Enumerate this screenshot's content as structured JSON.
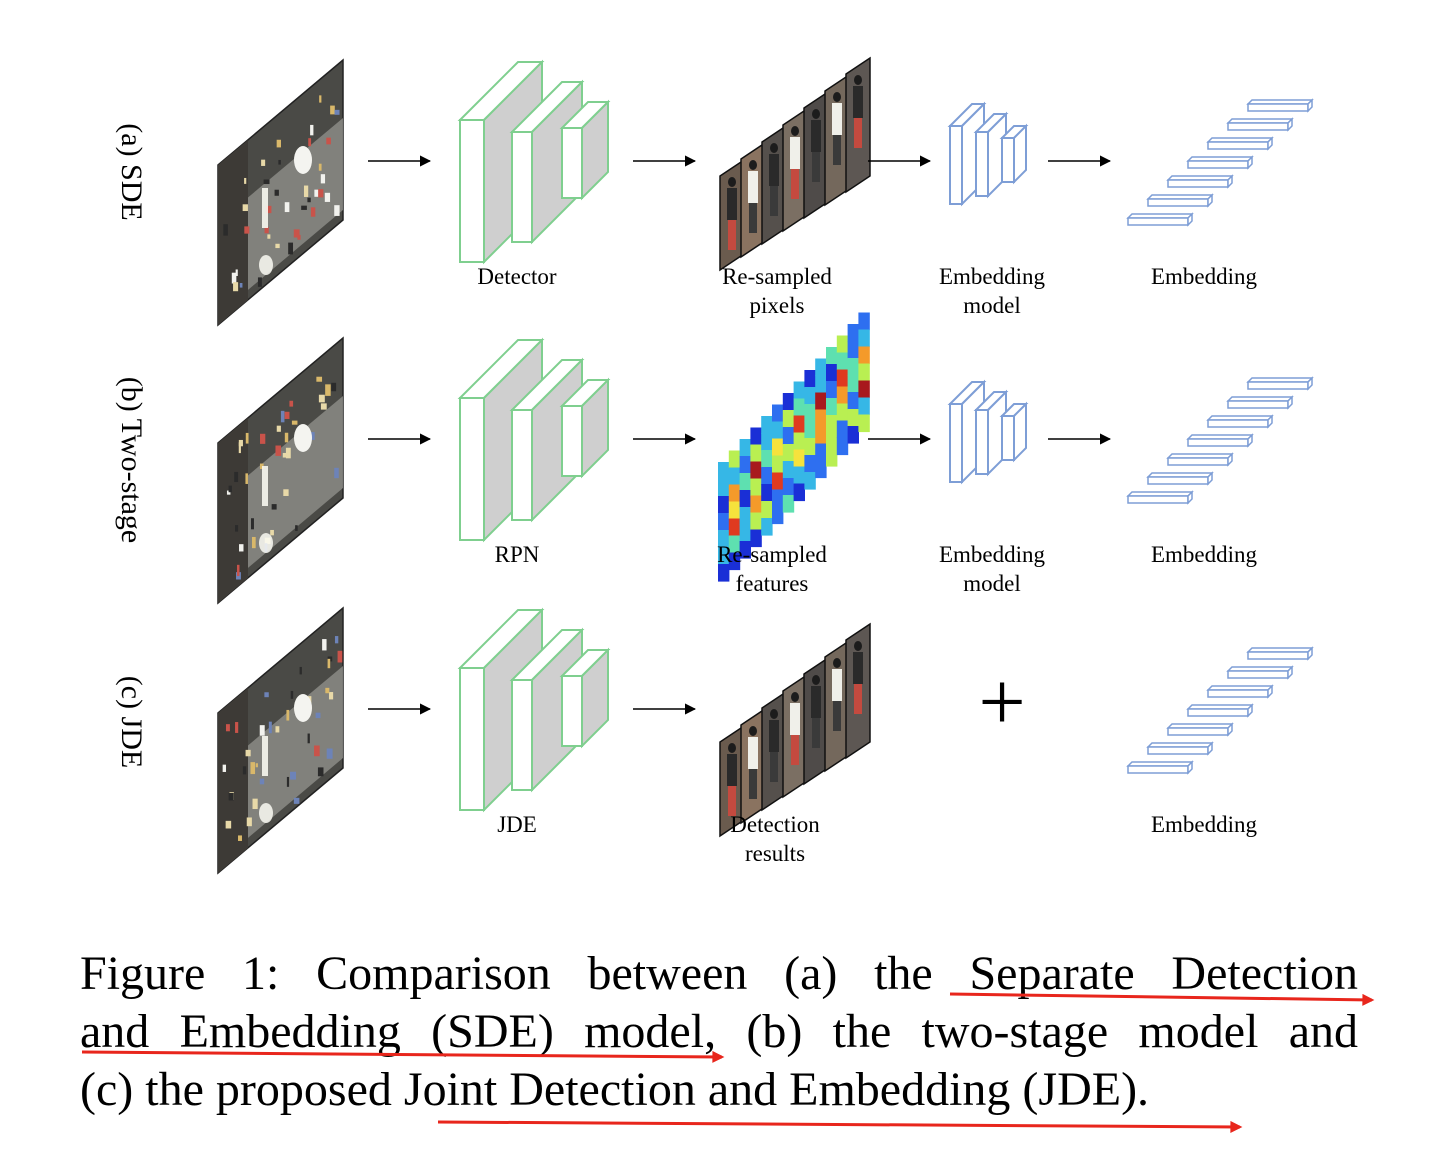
{
  "rows": [
    {
      "id": "sde",
      "label": "(a) SDE",
      "network_label": "Detector",
      "middle_label": [
        "Re-sampled",
        "pixels"
      ],
      "middle_kind": "pixels",
      "embedding_model_label": [
        "Embedding",
        "model"
      ],
      "output_label": "Embedding"
    },
    {
      "id": "two-stage",
      "label": "(b) Two-stage",
      "network_label": "RPN",
      "middle_label": [
        "Re-sampled",
        "features"
      ],
      "middle_kind": "features",
      "embedding_model_label": [
        "Embedding",
        "model"
      ],
      "output_label": "Embedding"
    },
    {
      "id": "jde",
      "label": "(c) JDE",
      "network_label": "JDE",
      "middle_label": [
        "Detection",
        "results"
      ],
      "middle_kind": "pixels",
      "plus_symbol": "+",
      "output_label": "Embedding"
    }
  ],
  "colors": {
    "network_edge": "#7fcf8f",
    "network_fill": "#cfcfcf",
    "embedding_edge": "#7e9ed6",
    "annotation_arrow": "#e8261c"
  },
  "caption": {
    "line1": "Figure 1: Comparison between (a) the Separate Detection",
    "line2": "and Embedding (SDE) model, (b) the two-stage model and",
    "line3": "(c) the proposed Joint Detection and Embedding (JDE)."
  }
}
